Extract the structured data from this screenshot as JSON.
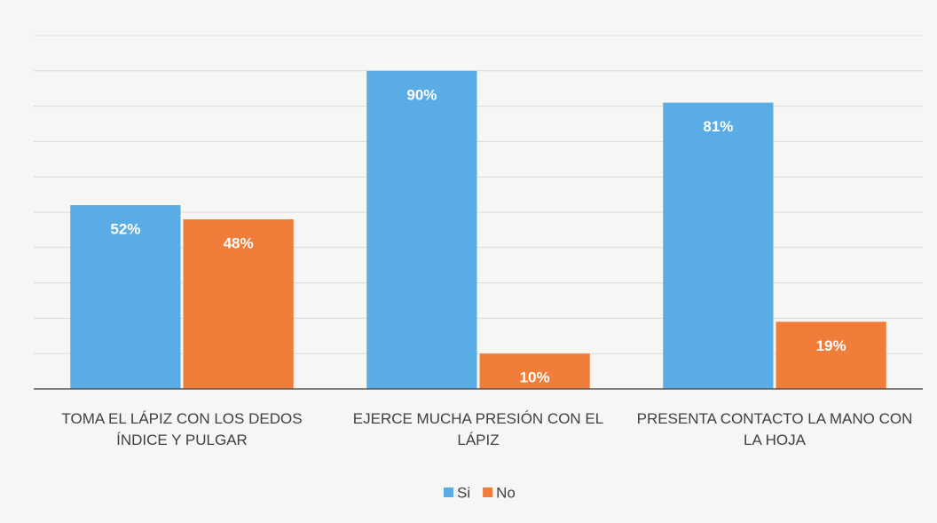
{
  "chart_data": {
    "type": "bar",
    "categories": [
      "TOMA EL LÁPIZ CON LOS DEDOS ÍNDICE Y PULGAR",
      "EJERCE MUCHA PRESIÓN CON EL LÁPIZ",
      "PRESENTA CONTACTO LA MANO CON LA HOJA"
    ],
    "series": [
      {
        "name": "Si",
        "color": "#5aace6",
        "values": [
          52,
          90,
          81
        ],
        "value_labels": [
          "52%",
          "90%",
          "81%"
        ]
      },
      {
        "name": "No",
        "color": "#f07e3a",
        "values": [
          48,
          10,
          19
        ],
        "value_labels": [
          "48%",
          "10%",
          "19%"
        ]
      }
    ],
    "ylim": [
      0,
      100
    ],
    "yticks": [
      0,
      10,
      20,
      30,
      40,
      50,
      60,
      70,
      80,
      90,
      100
    ],
    "grid": true,
    "legend": "bottom"
  }
}
